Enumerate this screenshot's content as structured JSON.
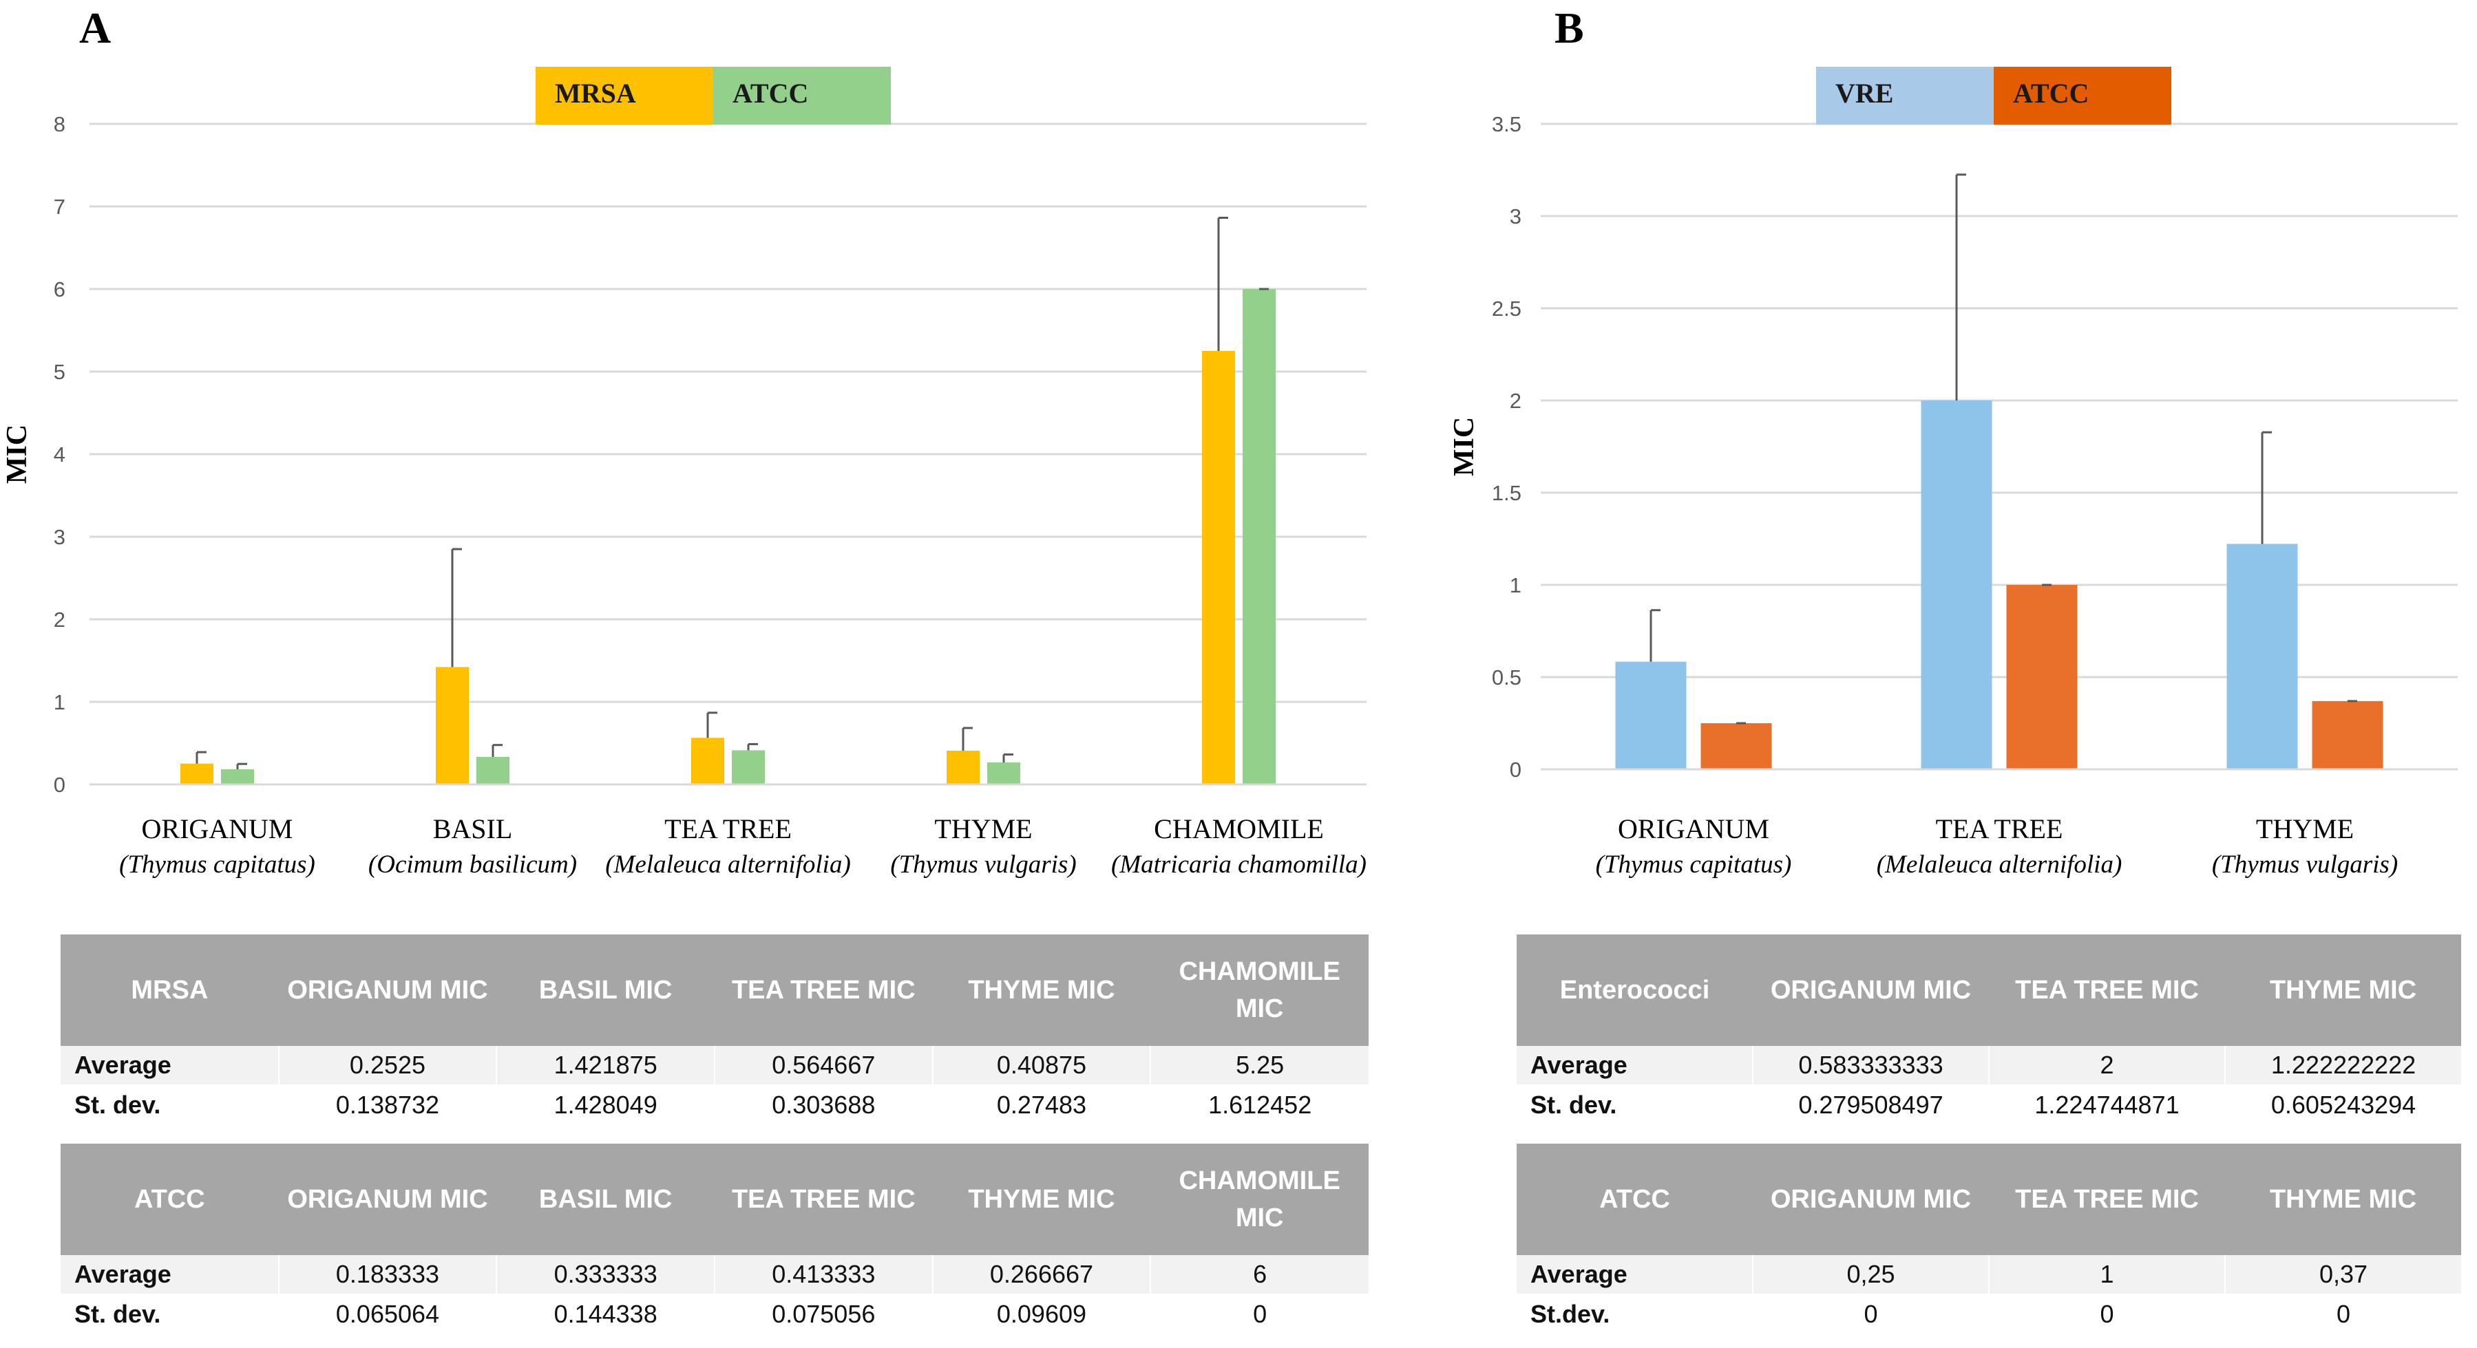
{
  "panels": [
    {
      "label": "A",
      "legend": [
        {
          "name": "MRSA",
          "color": "#ffc000"
        },
        {
          "name": "ATCC",
          "color": "#92d08b"
        }
      ],
      "chart_data": {
        "type": "bar",
        "ylabel": "MIC",
        "ylim": [
          0,
          8
        ],
        "yticks": [
          "0",
          "1",
          "2",
          "3",
          "4",
          "5",
          "6",
          "7",
          "8"
        ],
        "categories": [
          {
            "name": "ORIGANUM",
            "latin": "(Thymus capitatus)"
          },
          {
            "name": "BASIL",
            "latin": "(Ocimum basilicum)"
          },
          {
            "name": "TEA TREE",
            "latin": "(Melaleuca alternifolia)"
          },
          {
            "name": "THYME",
            "latin": "(Thymus vulgaris)"
          },
          {
            "name": "CHAMOMILE",
            "latin": "(Matricaria chamomilla)"
          }
        ],
        "series": [
          {
            "name": "MRSA",
            "color": "#ffc000",
            "values": [
              0.2525,
              1.421875,
              0.564667,
              0.40875,
              5.25
            ],
            "errors": [
              0.138732,
              1.428049,
              0.303688,
              0.27483,
              1.612452
            ]
          },
          {
            "name": "ATCC",
            "color": "#92d08b",
            "values": [
              0.183333,
              0.333333,
              0.413333,
              0.266667,
              6
            ],
            "errors": [
              0.065064,
              0.144338,
              0.075056,
              0.09609,
              0
            ]
          }
        ]
      },
      "tables": [
        {
          "header": [
            "MRSA",
            "ORIGANUM MIC",
            "BASIL MIC",
            "TEA TREE MIC",
            "THYME MIC",
            "CHAMOMILE MIC"
          ],
          "rows": [
            [
              "Average",
              "0.2525",
              "1.421875",
              "0.564667",
              "0.40875",
              "5.25"
            ],
            [
              "St. dev.",
              "0.138732",
              "1.428049",
              "0.303688",
              "0.27483",
              "1.612452"
            ]
          ]
        },
        {
          "header": [
            "ATCC",
            "ORIGANUM MIC",
            "BASIL MIC",
            "TEA TREE MIC",
            "THYME MIC",
            "CHAMOMILE MIC"
          ],
          "rows": [
            [
              "Average",
              "0.183333",
              "0.333333",
              "0.413333",
              "0.266667",
              "6"
            ],
            [
              "St. dev.",
              "0.065064",
              "0.144338",
              "0.075056",
              "0.09609",
              "0"
            ]
          ]
        }
      ]
    },
    {
      "label": "B",
      "legend": [
        {
          "name": "VRE",
          "color": "#a9c9e9"
        },
        {
          "name": "ATCC",
          "color": "#e35c00"
        }
      ],
      "chart_data": {
        "type": "bar",
        "ylabel": "MIC",
        "ylim": [
          0,
          3.5
        ],
        "yticks": [
          "0",
          "0.5",
          "1",
          "1.5",
          "2",
          "2.5",
          "3",
          "3.5"
        ],
        "categories": [
          {
            "name": "ORIGANUM",
            "latin": "(Thymus capitatus)"
          },
          {
            "name": "TEA TREE",
            "latin": "(Melaleuca alternifolia)"
          },
          {
            "name": "THYME",
            "latin": "(Thymus vulgaris)"
          }
        ],
        "series": [
          {
            "name": "VRE",
            "color": "#8ec3ea",
            "values": [
              0.583333333,
              2,
              1.222222222
            ],
            "errors": [
              0.279508497,
              1.224744871,
              0.605243294
            ]
          },
          {
            "name": "ATCC",
            "color": "#e8702a",
            "values": [
              0.25,
              1,
              0.37
            ],
            "errors": [
              0,
              0,
              0
            ]
          }
        ]
      },
      "tables": [
        {
          "header": [
            "Enterococci",
            "ORIGANUM MIC",
            "TEA TREE MIC",
            "THYME MIC"
          ],
          "rows": [
            [
              "Average",
              "0.583333333",
              "2",
              "1.222222222"
            ],
            [
              "St. dev.",
              "0.279508497",
              "1.224744871",
              "0.605243294"
            ]
          ]
        },
        {
          "header": [
            "ATCC",
            "ORIGANUM MIC",
            "TEA TREE MIC",
            "THYME MIC"
          ],
          "rows": [
            [
              "Average",
              "0,25",
              "1",
              "0,37"
            ],
            [
              "St.dev.",
              "0",
              "0",
              "0"
            ]
          ]
        }
      ]
    }
  ]
}
